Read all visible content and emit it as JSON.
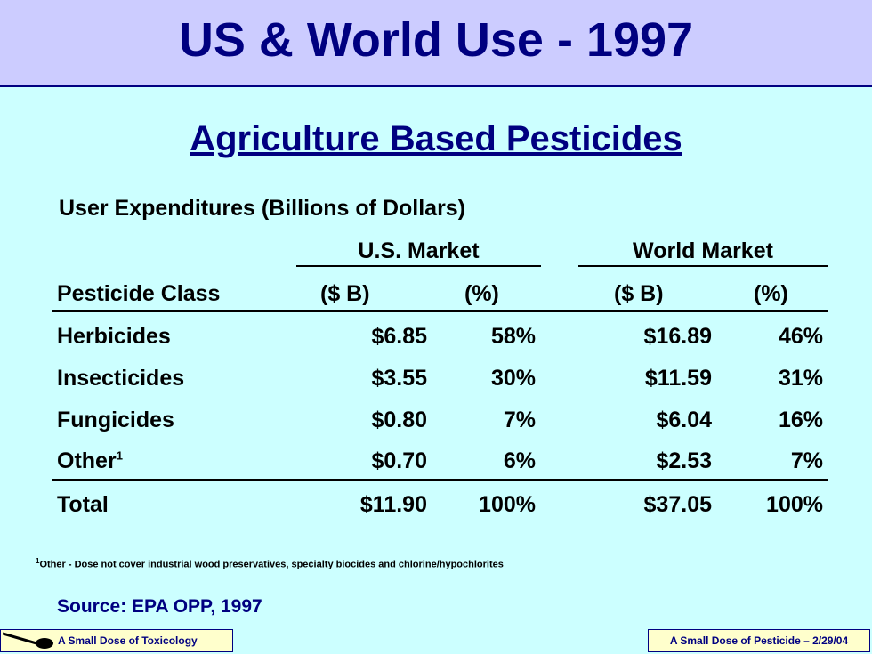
{
  "header": {
    "title": "US & World Use - 1997"
  },
  "subtitle": "Agriculture Based Pesticides",
  "caption": "User Expenditures (Billions of Dollars)",
  "table": {
    "group_us": "U.S. Market",
    "group_world": "World Market",
    "col_class": "Pesticide Class",
    "col_usd": "($ B)",
    "col_us_pct": "(%)",
    "col_world_usd": "($ B)",
    "col_world_pct": "(%)",
    "rows": [
      {
        "name": "Herbicides",
        "us_usd": "$6.85",
        "us_pct": "58%",
        "w_usd": "$16.89",
        "w_pct": "46%"
      },
      {
        "name": "Insecticides",
        "us_usd": "$3.55",
        "us_pct": "30%",
        "w_usd": "$11.59",
        "w_pct": "31%"
      },
      {
        "name": "Fungicides",
        "us_usd": "$0.80",
        "us_pct": "7%",
        "w_usd": "$6.04",
        "w_pct": "16%"
      },
      {
        "name": "Other",
        "sup": "1",
        "us_usd": "$0.70",
        "us_pct": "6%",
        "w_usd": "$2.53",
        "w_pct": "7%"
      }
    ],
    "total": {
      "name": "Total",
      "us_usd": "$11.90",
      "us_pct": "100%",
      "w_usd": "$37.05",
      "w_pct": "100%"
    }
  },
  "footnote": {
    "mark": "1",
    "text": "Other - Dose not cover industrial wood preservatives, specialty biocides and chlorine/hypochlorites"
  },
  "source": "Source: EPA OPP, 1997",
  "footer": {
    "left": "A Small Dose of Toxicology",
    "right": "A Small Dose of Pesticide – 2/29/04"
  },
  "colors": {
    "navy": "#000080",
    "background": "#ccffff",
    "title_bar": "#ccccff",
    "footer_box": "#ffffcc"
  }
}
